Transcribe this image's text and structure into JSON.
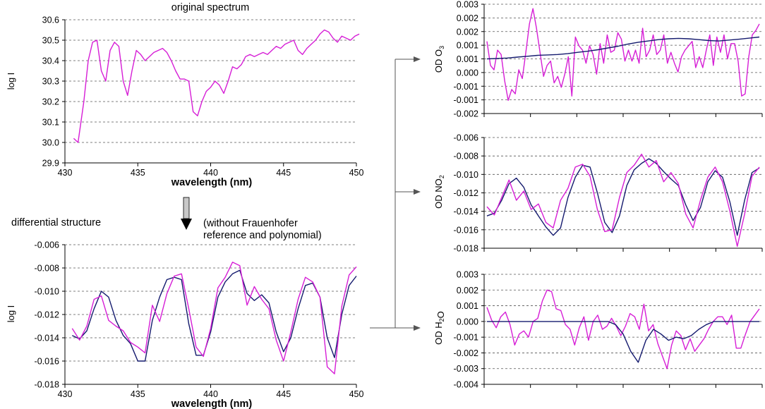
{
  "colors": {
    "measured": "#d61ed6",
    "fitted": "#141a6e",
    "axis": "#000000",
    "grid": "#555555"
  },
  "labels": {
    "original_title": "original spectrum",
    "differential_label": "differential structure",
    "without_line1": "(without Frauenhofer",
    "without_line2": "reference and polynomial)"
  },
  "chart_data": [
    {
      "id": "original",
      "type": "line",
      "title": "original spectrum",
      "xlabel": "wavelength (nm)",
      "ylabel": "log I",
      "xlim": [
        430,
        450
      ],
      "ylim": [
        29.9,
        30.6
      ],
      "xticks": [
        "430",
        "435",
        "440",
        "445",
        "450"
      ],
      "yticks": [
        "30.6",
        "30.5",
        "30.4",
        "30.3",
        "30.2",
        "30.1",
        "30.0",
        "29.9"
      ],
      "grid": "horizontal dashed",
      "series": [
        {
          "color": "measured",
          "x": [
            430.6,
            430.9,
            431.3,
            431.6,
            431.9,
            432.2,
            432.5,
            432.8,
            433.1,
            433.4,
            433.7,
            434.0,
            434.3,
            434.6,
            434.9,
            435.2,
            435.5,
            435.8,
            436.1,
            436.4,
            436.7,
            437.0,
            437.3,
            437.6,
            437.9,
            438.2,
            438.5,
            438.8,
            439.1,
            439.4,
            439.7,
            440.0,
            440.3,
            440.6,
            440.9,
            441.2,
            441.5,
            441.8,
            442.1,
            442.4,
            442.7,
            443.0,
            443.3,
            443.6,
            443.9,
            444.2,
            444.5,
            444.8,
            445.1,
            445.4,
            445.7,
            446.0,
            446.3,
            446.6,
            446.9,
            447.2,
            447.5,
            447.8,
            448.1,
            448.4,
            448.7,
            449.0,
            449.3,
            449.6,
            449.9,
            450.2
          ],
          "y": [
            30.02,
            30.0,
            30.2,
            30.4,
            30.49,
            30.5,
            30.35,
            30.3,
            30.45,
            30.49,
            30.47,
            30.3,
            30.23,
            30.35,
            30.45,
            30.43,
            30.4,
            30.42,
            30.44,
            30.45,
            30.46,
            30.44,
            30.4,
            30.35,
            30.31,
            30.31,
            30.3,
            30.15,
            30.13,
            30.2,
            30.25,
            30.27,
            30.3,
            30.28,
            30.24,
            30.3,
            30.37,
            30.36,
            30.38,
            30.42,
            30.43,
            30.42,
            30.43,
            30.44,
            30.43,
            30.45,
            30.47,
            30.46,
            30.48,
            30.49,
            30.5,
            30.45,
            30.43,
            30.46,
            30.48,
            30.5,
            30.53,
            30.55,
            30.54,
            30.51,
            30.49,
            30.52,
            30.51,
            30.5,
            30.52,
            30.53
          ]
        }
      ]
    },
    {
      "id": "differential",
      "type": "line",
      "xlabel": "wavelength (nm)",
      "ylabel": "log I",
      "xlim": [
        430,
        450
      ],
      "ylim": [
        -0.018,
        -0.006
      ],
      "xticks": [
        "430",
        "435",
        "440",
        "445",
        "450"
      ],
      "yticks": [
        "-0.006",
        "-0.008",
        "-0.010",
        "-0.012",
        "-0.014",
        "-0.016",
        "-0.018"
      ],
      "grid": "horizontal dashed",
      "series": [
        {
          "color": "fitted",
          "x": [
            430.5,
            431.0,
            431.5,
            432.0,
            432.5,
            433.0,
            433.5,
            434.0,
            434.5,
            435.0,
            435.5,
            436.0,
            436.5,
            437.0,
            437.5,
            438.0,
            438.5,
            439.0,
            439.5,
            440.0,
            440.5,
            441.0,
            441.5,
            442.0,
            442.5,
            443.0,
            443.5,
            444.0,
            444.5,
            445.0,
            445.5,
            446.0,
            446.5,
            447.0,
            447.5,
            448.0,
            448.5,
            449.0,
            449.5,
            450.0
          ],
          "y": [
            -0.0138,
            -0.0141,
            -0.0134,
            -0.0115,
            -0.01,
            -0.0105,
            -0.0125,
            -0.0138,
            -0.0145,
            -0.016,
            -0.016,
            -0.0125,
            -0.0105,
            -0.009,
            -0.0088,
            -0.009,
            -0.0128,
            -0.0155,
            -0.0155,
            -0.0135,
            -0.0105,
            -0.0092,
            -0.0085,
            -0.0082,
            -0.0102,
            -0.0108,
            -0.0103,
            -0.011,
            -0.0135,
            -0.0152,
            -0.014,
            -0.0115,
            -0.0095,
            -0.0093,
            -0.0105,
            -0.014,
            -0.0157,
            -0.012,
            -0.0095,
            -0.0087
          ]
        },
        {
          "color": "measured",
          "x": [
            430.5,
            431.0,
            431.5,
            432.0,
            432.5,
            433.0,
            433.5,
            434.0,
            434.5,
            435.0,
            435.5,
            436.0,
            436.5,
            437.0,
            437.5,
            438.0,
            438.5,
            439.0,
            439.5,
            440.0,
            440.5,
            441.0,
            441.5,
            442.0,
            442.5,
            443.0,
            443.5,
            444.0,
            444.5,
            445.0,
            445.5,
            446.0,
            446.5,
            447.0,
            447.5,
            448.0,
            448.5,
            449.0,
            449.5,
            450.0
          ],
          "y": [
            -0.0132,
            -0.0142,
            -0.013,
            -0.0107,
            -0.0104,
            -0.0125,
            -0.013,
            -0.0134,
            -0.0144,
            -0.0148,
            -0.0153,
            -0.0112,
            -0.0126,
            -0.0102,
            -0.0087,
            -0.0085,
            -0.0115,
            -0.0148,
            -0.0156,
            -0.0132,
            -0.0097,
            -0.0088,
            -0.0075,
            -0.0078,
            -0.0112,
            -0.0096,
            -0.0107,
            -0.0115,
            -0.0142,
            -0.016,
            -0.0135,
            -0.0107,
            -0.0088,
            -0.0092,
            -0.0105,
            -0.0165,
            -0.0171,
            -0.0113,
            -0.0086,
            -0.0079
          ]
        }
      ]
    },
    {
      "id": "od_o3",
      "type": "line",
      "ylabel": "OD O3",
      "ylim": [
        -0.002,
        0.003
      ],
      "yticks": [
        "0.003",
        "0.002",
        "0.002",
        "0.001",
        "0.001",
        "0.000",
        "-0.001",
        "-0.001",
        "-0.002"
      ],
      "grid": "horizontal dashed",
      "series": [
        {
          "color": "measured",
          "y": [
            0.0013,
            0.0002,
            0.0,
            0.0009,
            0.0007,
            -0.0005,
            -0.0014,
            -0.0009,
            -0.0011,
            0.0,
            -0.0004,
            0.0008,
            0.0021,
            0.0028,
            0.0019,
            0.0008,
            -0.0003,
            0.0002,
            0.0004,
            -0.0006,
            -0.0003,
            -0.0008,
            -0.0002,
            0.0006,
            -0.0012,
            0.0015,
            0.0011,
            0.0009,
            0.0003,
            0.0011,
            0.0007,
            -0.0002,
            0.0012,
            0.0003,
            0.0016,
            0.0008,
            0.0009,
            0.0017,
            0.0014,
            0.0004,
            0.0009,
            0.0004,
            0.0009,
            0.0003,
            0.0019,
            0.0006,
            0.0009,
            0.0016,
            0.0007,
            0.0009,
            0.0016,
            0.0003,
            0.0008,
            0.0003,
            -0.0001,
            0.0006,
            0.0009,
            0.0011,
            0.0013,
            0.0001,
            0.0006,
            0.0001,
            0.0009,
            0.0016,
            0.0002,
            0.0015,
            0.0008,
            0.0016,
            0.0005,
            0.0012,
            0.0012,
            0.0004,
            -0.0012,
            -0.0011,
            0.0006,
            0.0016,
            0.0018,
            0.0021
          ]
        },
        {
          "color": "fitted",
          "y": [
            0.0005,
            0.00052,
            0.00054,
            0.00058,
            0.00062,
            0.00066,
            0.00068,
            0.0007,
            0.00074,
            0.0008,
            0.00085,
            0.00092,
            0.001,
            0.00108,
            0.00118,
            0.00126,
            0.00132,
            0.00138,
            0.00142,
            0.00144,
            0.00142,
            0.00138,
            0.00134,
            0.00132,
            0.00136,
            0.0014,
            0.00145,
            0.0015
          ]
        }
      ]
    },
    {
      "id": "od_no2",
      "type": "line",
      "ylabel": "OD NO2",
      "ylim": [
        -0.018,
        -0.006
      ],
      "yticks": [
        "-0.006",
        "-0.008",
        "-0.010",
        "-0.012",
        "-0.014",
        "-0.016",
        "-0.018"
      ],
      "grid": "horizontal dashed",
      "series": [
        {
          "color": "fitted",
          "y": [
            -0.0145,
            -0.0142,
            -0.0128,
            -0.011,
            -0.0104,
            -0.0114,
            -0.0133,
            -0.0145,
            -0.0157,
            -0.0166,
            -0.0158,
            -0.0125,
            -0.0103,
            -0.009,
            -0.0092,
            -0.012,
            -0.0152,
            -0.0163,
            -0.0145,
            -0.0112,
            -0.0095,
            -0.0088,
            -0.0083,
            -0.0088,
            -0.0097,
            -0.0105,
            -0.0112,
            -0.0133,
            -0.015,
            -0.0136,
            -0.0108,
            -0.0096,
            -0.0103,
            -0.013,
            -0.0166,
            -0.0128,
            -0.0098,
            -0.0093
          ]
        },
        {
          "color": "measured",
          "y": [
            -0.0135,
            -0.0144,
            -0.0125,
            -0.0106,
            -0.0128,
            -0.0118,
            -0.0138,
            -0.0132,
            -0.0152,
            -0.0158,
            -0.0128,
            -0.0115,
            -0.0092,
            -0.0089,
            -0.0102,
            -0.0138,
            -0.0162,
            -0.016,
            -0.0125,
            -0.0098,
            -0.009,
            -0.0078,
            -0.0092,
            -0.0085,
            -0.0108,
            -0.0098,
            -0.011,
            -0.0143,
            -0.0158,
            -0.0128,
            -0.0103,
            -0.0092,
            -0.0108,
            -0.014,
            -0.0178,
            -0.0143,
            -0.0102,
            -0.0092
          ]
        }
      ]
    },
    {
      "id": "od_h2o",
      "type": "line",
      "ylabel": "OD H2O",
      "ylim": [
        -0.004,
        0.003
      ],
      "yticks": [
        "0.003",
        "0.002",
        "0.001",
        "0.000",
        "-0.001",
        "-0.002",
        "-0.003",
        "-0.004"
      ],
      "grid": "horizontal dashed",
      "series": [
        {
          "color": "measured",
          "y": [
            0.0009,
            0.0001,
            -0.0004,
            0.0003,
            0.0006,
            -0.0002,
            -0.0015,
            -0.0008,
            -0.0006,
            -0.001,
            0.0,
            0.0002,
            0.0013,
            0.002,
            0.0019,
            0.0008,
            0.0007,
            -0.0002,
            -0.0005,
            -0.0015,
            -0.0004,
            0.0003,
            -0.0012,
            0.0,
            0.0004,
            -0.0005,
            -0.0003,
            0.0002,
            -0.0003,
            -0.0009,
            -0.0003,
            0.0005,
            0.0003,
            -0.0005,
            0.0011,
            -0.0006,
            -0.0002,
            -0.0014,
            -0.0022,
            -0.003,
            -0.0015,
            -0.0006,
            -0.0009,
            -0.0018,
            -0.0011,
            -0.0019,
            -0.0015,
            -0.0011,
            -0.0005,
            0.0,
            0.0003,
            0.0003,
            -0.0002,
            0.0004,
            -0.0017,
            -0.0017,
            -0.0008,
            0.0,
            0.0004,
            0.0008
          ]
        },
        {
          "color": "fitted",
          "y": [
            0.0,
            0.0,
            0.0,
            0.0,
            0.0,
            0.0,
            0.0,
            0.0,
            0.0,
            0.0,
            0.0,
            0.0,
            0.0,
            0.0,
            0.0,
            0.0,
            0.0,
            -0.0002,
            -0.0008,
            -0.0019,
            -0.0026,
            -0.0012,
            -0.0005,
            -0.0008,
            -0.0012,
            -0.001,
            -0.0011,
            -0.0009,
            -0.0005,
            -0.0002,
            0.0,
            0.0,
            0.0,
            0.0,
            0.0,
            0.0,
            0.0
          ]
        }
      ]
    }
  ]
}
